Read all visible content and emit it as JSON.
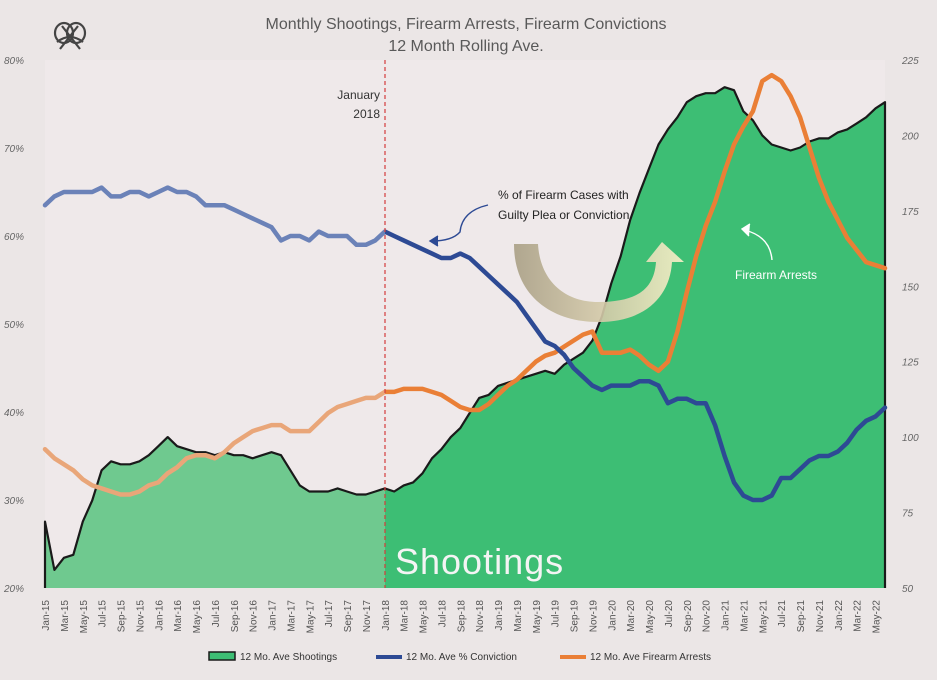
{
  "chart_data": {
    "type": "line",
    "title": "Monthly Shootings, Firearm Arrests, Firearm Convictions",
    "subtitle": "12 Month Rolling Ave.",
    "y_left_ticks": [
      "20%",
      "30%",
      "40%",
      "50%",
      "60%",
      "70%",
      "80%"
    ],
    "y_left_range": [
      20,
      80
    ],
    "y_right_ticks": [
      "50",
      "75",
      "100",
      "125",
      "150",
      "175",
      "200",
      "225"
    ],
    "y_right_range": [
      50,
      225
    ],
    "x_tick_labels": [
      "Jan-15",
      "Mar-15",
      "May-15",
      "Jul-15",
      "Sep-15",
      "Nov-15",
      "Jan-16",
      "Mar-16",
      "May-16",
      "Jul-16",
      "Sep-16",
      "Nov-16",
      "Jan-17",
      "Mar-17",
      "May-17",
      "Jul-17",
      "Sep-17",
      "Nov-17",
      "Jan-18",
      "Mar-18",
      "May-18",
      "Jul-18",
      "Sep-18",
      "Nov-18",
      "Jan-19",
      "Mar-19",
      "May-19",
      "Jul-19",
      "Sep-19",
      "Nov-19",
      "Jan-20",
      "Mar-20",
      "May-20",
      "Jul-20",
      "Sep-20",
      "Nov-20",
      "Jan-21",
      "Mar-21",
      "May-21",
      "Jul-21",
      "Sep-21",
      "Nov-21",
      "Jan-22",
      "Mar-22",
      "May-22"
    ],
    "months_count": 90,
    "divider_month_index": 36,
    "divider_label_line1": "January",
    "divider_label_line2": "2018",
    "annotation_conviction_line1": "% of Firearm Cases with",
    "annotation_conviction_line2": "Guilty Plea or Conviction",
    "annotation_arrests": "Firearm Arrests",
    "area_label": "Shootings",
    "legend": [
      "12 Mo. Ave Shootings",
      "12 Mo. Ave % Conviction",
      "12 Mo. Ave Firearm Arrests"
    ],
    "series": [
      {
        "name": "12 Mo. Ave Shootings",
        "axis": "right",
        "points": [
          [
            0,
            72
          ],
          [
            1,
            56
          ],
          [
            2,
            60
          ],
          [
            3,
            61
          ],
          [
            4,
            72
          ],
          [
            5,
            79
          ],
          [
            6,
            89
          ],
          [
            7,
            92
          ],
          [
            8,
            91
          ],
          [
            9,
            91
          ],
          [
            10,
            92
          ],
          [
            11,
            94
          ],
          [
            12,
            97
          ],
          [
            13,
            100
          ],
          [
            14,
            97
          ],
          [
            15,
            96
          ],
          [
            16,
            95
          ],
          [
            17,
            95
          ],
          [
            18,
            94
          ],
          [
            19,
            95
          ],
          [
            20,
            94
          ],
          [
            21,
            94
          ],
          [
            22,
            93
          ],
          [
            23,
            94
          ],
          [
            24,
            95
          ],
          [
            25,
            94
          ],
          [
            26,
            89
          ],
          [
            27,
            84
          ],
          [
            28,
            82
          ],
          [
            29,
            82
          ],
          [
            30,
            82
          ],
          [
            31,
            83
          ],
          [
            32,
            82
          ],
          [
            33,
            81
          ],
          [
            34,
            81
          ],
          [
            35,
            82
          ],
          [
            36,
            83
          ],
          [
            37,
            82
          ],
          [
            38,
            84
          ],
          [
            39,
            85
          ],
          [
            40,
            88
          ],
          [
            41,
            93
          ],
          [
            42,
            96
          ],
          [
            43,
            100
          ],
          [
            44,
            103
          ],
          [
            45,
            108
          ],
          [
            46,
            113
          ],
          [
            47,
            114
          ],
          [
            48,
            117
          ],
          [
            49,
            118
          ],
          [
            50,
            119
          ],
          [
            51,
            120
          ],
          [
            52,
            121
          ],
          [
            53,
            122
          ],
          [
            54,
            121
          ],
          [
            55,
            124
          ],
          [
            56,
            126
          ],
          [
            57,
            128
          ],
          [
            58,
            132
          ],
          [
            59,
            140
          ],
          [
            60,
            151
          ],
          [
            61,
            160
          ],
          [
            62,
            172
          ],
          [
            63,
            181
          ],
          [
            64,
            189
          ],
          [
            65,
            197
          ],
          [
            66,
            202
          ],
          [
            67,
            206
          ],
          [
            68,
            211
          ],
          [
            69,
            213
          ],
          [
            70,
            214
          ],
          [
            71,
            214
          ],
          [
            72,
            216
          ],
          [
            73,
            215
          ],
          [
            74,
            208
          ],
          [
            75,
            205
          ],
          [
            76,
            200
          ],
          [
            77,
            197
          ],
          [
            78,
            196
          ],
          [
            79,
            195
          ],
          [
            80,
            196
          ],
          [
            81,
            198
          ],
          [
            82,
            199
          ],
          [
            83,
            199
          ],
          [
            84,
            201
          ],
          [
            85,
            202
          ],
          [
            86,
            204
          ],
          [
            87,
            206
          ],
          [
            88,
            209
          ],
          [
            89,
            211
          ]
        ]
      },
      {
        "name": "12 Mo. Ave % Conviction",
        "axis": "left",
        "points": [
          [
            0,
            63.5
          ],
          [
            1,
            64.5
          ],
          [
            2,
            65
          ],
          [
            3,
            65
          ],
          [
            4,
            65
          ],
          [
            5,
            65
          ],
          [
            6,
            65.5
          ],
          [
            7,
            64.5
          ],
          [
            8,
            64.5
          ],
          [
            9,
            65
          ],
          [
            10,
            65
          ],
          [
            11,
            64.5
          ],
          [
            12,
            65
          ],
          [
            13,
            65.5
          ],
          [
            14,
            65
          ],
          [
            15,
            65
          ],
          [
            16,
            64.5
          ],
          [
            17,
            63.5
          ],
          [
            18,
            63.5
          ],
          [
            19,
            63.5
          ],
          [
            20,
            63
          ],
          [
            21,
            62.5
          ],
          [
            22,
            62
          ],
          [
            23,
            61.5
          ],
          [
            24,
            61
          ],
          [
            25,
            59.5
          ],
          [
            26,
            60
          ],
          [
            27,
            60
          ],
          [
            28,
            59.5
          ],
          [
            29,
            60.5
          ],
          [
            30,
            60
          ],
          [
            31,
            60
          ],
          [
            32,
            60
          ],
          [
            33,
            59
          ],
          [
            34,
            59
          ],
          [
            35,
            59.5
          ],
          [
            36,
            60.5
          ],
          [
            37,
            60
          ],
          [
            38,
            59.5
          ],
          [
            39,
            59
          ],
          [
            40,
            58.5
          ],
          [
            41,
            58
          ],
          [
            42,
            57.5
          ],
          [
            43,
            57.5
          ],
          [
            44,
            58
          ],
          [
            45,
            57.5
          ],
          [
            46,
            56.5
          ],
          [
            47,
            55.5
          ],
          [
            48,
            54.5
          ],
          [
            49,
            53.5
          ],
          [
            50,
            52.5
          ],
          [
            51,
            51
          ],
          [
            52,
            49.5
          ],
          [
            53,
            48
          ],
          [
            54,
            47.5
          ],
          [
            55,
            46.5
          ],
          [
            56,
            45
          ],
          [
            57,
            44
          ],
          [
            58,
            43
          ],
          [
            59,
            42.5
          ],
          [
            60,
            43
          ],
          [
            61,
            43
          ],
          [
            62,
            43
          ],
          [
            63,
            43.5
          ],
          [
            64,
            43.5
          ],
          [
            65,
            43
          ],
          [
            66,
            41
          ],
          [
            67,
            41.5
          ],
          [
            68,
            41.5
          ],
          [
            69,
            41
          ],
          [
            70,
            41
          ],
          [
            71,
            38.5
          ],
          [
            72,
            35
          ],
          [
            73,
            32
          ],
          [
            74,
            30.5
          ],
          [
            75,
            30
          ],
          [
            76,
            30
          ],
          [
            77,
            30.5
          ],
          [
            78,
            32.5
          ],
          [
            79,
            32.5
          ],
          [
            80,
            33.5
          ],
          [
            81,
            34.5
          ],
          [
            82,
            35
          ],
          [
            83,
            35
          ],
          [
            84,
            35.5
          ],
          [
            85,
            36.5
          ],
          [
            86,
            38
          ],
          [
            87,
            39
          ],
          [
            88,
            39.5
          ],
          [
            89,
            40.5
          ]
        ]
      },
      {
        "name": "12 Mo. Ave Firearm Arrests",
        "axis": "right",
        "points": [
          [
            0,
            96
          ],
          [
            1,
            93
          ],
          [
            2,
            91
          ],
          [
            3,
            89
          ],
          [
            4,
            86
          ],
          [
            5,
            84
          ],
          [
            6,
            83
          ],
          [
            7,
            82
          ],
          [
            8,
            81
          ],
          [
            9,
            81
          ],
          [
            10,
            82
          ],
          [
            11,
            84
          ],
          [
            12,
            85
          ],
          [
            13,
            88
          ],
          [
            14,
            90
          ],
          [
            15,
            93
          ],
          [
            16,
            94
          ],
          [
            17,
            94
          ],
          [
            18,
            93
          ],
          [
            19,
            95
          ],
          [
            20,
            98
          ],
          [
            21,
            100
          ],
          [
            22,
            102
          ],
          [
            23,
            103
          ],
          [
            24,
            104
          ],
          [
            25,
            104
          ],
          [
            26,
            102
          ],
          [
            27,
            102
          ],
          [
            28,
            102
          ],
          [
            29,
            105
          ],
          [
            30,
            108
          ],
          [
            31,
            110
          ],
          [
            32,
            111
          ],
          [
            33,
            112
          ],
          [
            34,
            113
          ],
          [
            35,
            113
          ],
          [
            36,
            115
          ],
          [
            37,
            115
          ],
          [
            38,
            116
          ],
          [
            39,
            116
          ],
          [
            40,
            116
          ],
          [
            41,
            115
          ],
          [
            42,
            114
          ],
          [
            43,
            112
          ],
          [
            44,
            110
          ],
          [
            45,
            109
          ],
          [
            46,
            109
          ],
          [
            47,
            111
          ],
          [
            48,
            114
          ],
          [
            49,
            117
          ],
          [
            50,
            119
          ],
          [
            51,
            122
          ],
          [
            52,
            125
          ],
          [
            53,
            127
          ],
          [
            54,
            128
          ],
          [
            55,
            130
          ],
          [
            56,
            132
          ],
          [
            57,
            134
          ],
          [
            58,
            135
          ],
          [
            59,
            128
          ],
          [
            60,
            128
          ],
          [
            61,
            128
          ],
          [
            62,
            129
          ],
          [
            63,
            127
          ],
          [
            64,
            124
          ],
          [
            65,
            122
          ],
          [
            66,
            125
          ],
          [
            67,
            135
          ],
          [
            68,
            148
          ],
          [
            69,
            160
          ],
          [
            70,
            170
          ],
          [
            71,
            178
          ],
          [
            72,
            188
          ],
          [
            73,
            197
          ],
          [
            74,
            203
          ],
          [
            75,
            208
          ],
          [
            76,
            218
          ],
          [
            77,
            220
          ],
          [
            78,
            218
          ],
          [
            79,
            213
          ],
          [
            80,
            206
          ],
          [
            81,
            196
          ],
          [
            82,
            186
          ],
          [
            83,
            178
          ],
          [
            84,
            172
          ],
          [
            85,
            166
          ],
          [
            86,
            162
          ],
          [
            87,
            158
          ],
          [
            88,
            157
          ],
          [
            89,
            156
          ]
        ]
      }
    ],
    "colors": {
      "background": "#ebe6e6",
      "shootings_fill_left": "#6fc98f",
      "shootings_fill_right": "#3dbe74",
      "shootings_stroke": "#1a1a1a",
      "conviction_left": "#6b82b8",
      "conviction_right": "#2d4a94",
      "arrests_left": "#e9a679",
      "arrests_right": "#ea7f36",
      "divider": "#d43c3c",
      "text": "#555555"
    }
  }
}
